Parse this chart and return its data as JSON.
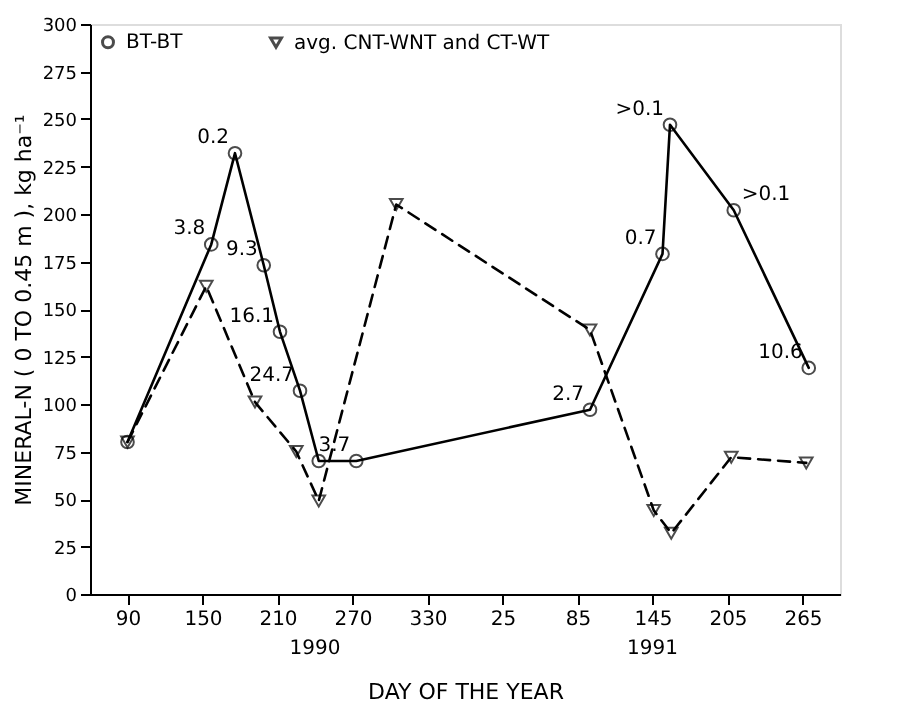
{
  "chart_data": {
    "type": "line",
    "xlabel": "DAY OF THE YEAR",
    "ylabel": "MINERAL-N ( 0 TO 0.45 m ), kg ha⁻¹",
    "series": [
      {
        "name": "BT-BT",
        "color": "#000000",
        "marker": "circle",
        "line_style": "solid",
        "x": [
          "1990-03-31",
          "1990-06-06",
          "1990-06-25",
          "1990-07-18",
          "1990-07-31",
          "1990-08-16",
          "1990-08-31",
          "1990-09-30",
          "1991-04-05",
          "1991-06-02",
          "1991-06-08",
          "1991-07-29",
          "1991-09-27"
        ],
        "values": [
          80,
          184,
          232,
          173,
          138,
          107,
          70,
          70,
          97,
          179,
          247,
          202,
          119
        ]
      },
      {
        "name": "avg. CNT-WNT and CT-WT",
        "color": "#000000",
        "marker": "triangle",
        "line_style": "dashed",
        "x": [
          "1990-03-31",
          "1990-06-02",
          "1990-07-11",
          "1990-08-13",
          "1990-08-31",
          "1990-11-01",
          "1991-04-05",
          "1991-05-26",
          "1991-06-09",
          "1991-07-27",
          "1991-09-25"
        ],
        "values": [
          80,
          162,
          101,
          75,
          49,
          205,
          139,
          44,
          32,
          72,
          69
        ]
      }
    ],
    "annotations": [
      {
        "text": "3.8",
        "x": "1990-06-06",
        "y": 184
      },
      {
        "text": "0.2",
        "x": "1990-06-25",
        "y": 232
      },
      {
        "text": "9.3",
        "x": "1990-07-18",
        "y": 173
      },
      {
        "text": "16.1",
        "x": "1990-07-31",
        "y": 138
      },
      {
        "text": "24.7",
        "x": "1990-08-16",
        "y": 107
      },
      {
        "text": "3.7",
        "x": "1990-09-30",
        "y": 70
      },
      {
        "text": "2.7",
        "x": "1991-04-05",
        "y": 97
      },
      {
        "text": "0.7",
        "x": "1991-06-02",
        "y": 179
      },
      {
        "text": ">0.1",
        "x": "1991-06-08",
        "y": 247
      },
      {
        "text": ">0.1",
        "x": "1991-07-29",
        "y": 202
      },
      {
        "text": "10.6",
        "x": "1991-09-27",
        "y": 119
      },
      "1990",
      "1991"
    ],
    "xlim": [
      "1990-03-01",
      "1991-10-22"
    ],
    "xticks": [
      {
        "value": "1990-03-31",
        "label": "90"
      },
      {
        "value": "1990-05-30",
        "label": "150"
      },
      {
        "value": "1990-07-29",
        "label": "210"
      },
      {
        "value": "1990-09-27",
        "label": "270"
      },
      {
        "value": "1990-11-26",
        "label": "330"
      },
      {
        "value": "1991-01-25",
        "label": "25"
      },
      {
        "value": "1991-03-26",
        "label": "85"
      },
      {
        "value": "1991-05-25",
        "label": "145"
      },
      {
        "value": "1991-07-24",
        "label": "205"
      },
      {
        "value": "1991-09-22",
        "label": "265"
      }
    ],
    "ylim": [
      0,
      300
    ],
    "yticks": [
      0,
      25,
      50,
      75,
      100,
      125,
      150,
      175,
      200,
      225,
      250,
      275,
      300
    ],
    "grid": false,
    "legend": "top left"
  }
}
